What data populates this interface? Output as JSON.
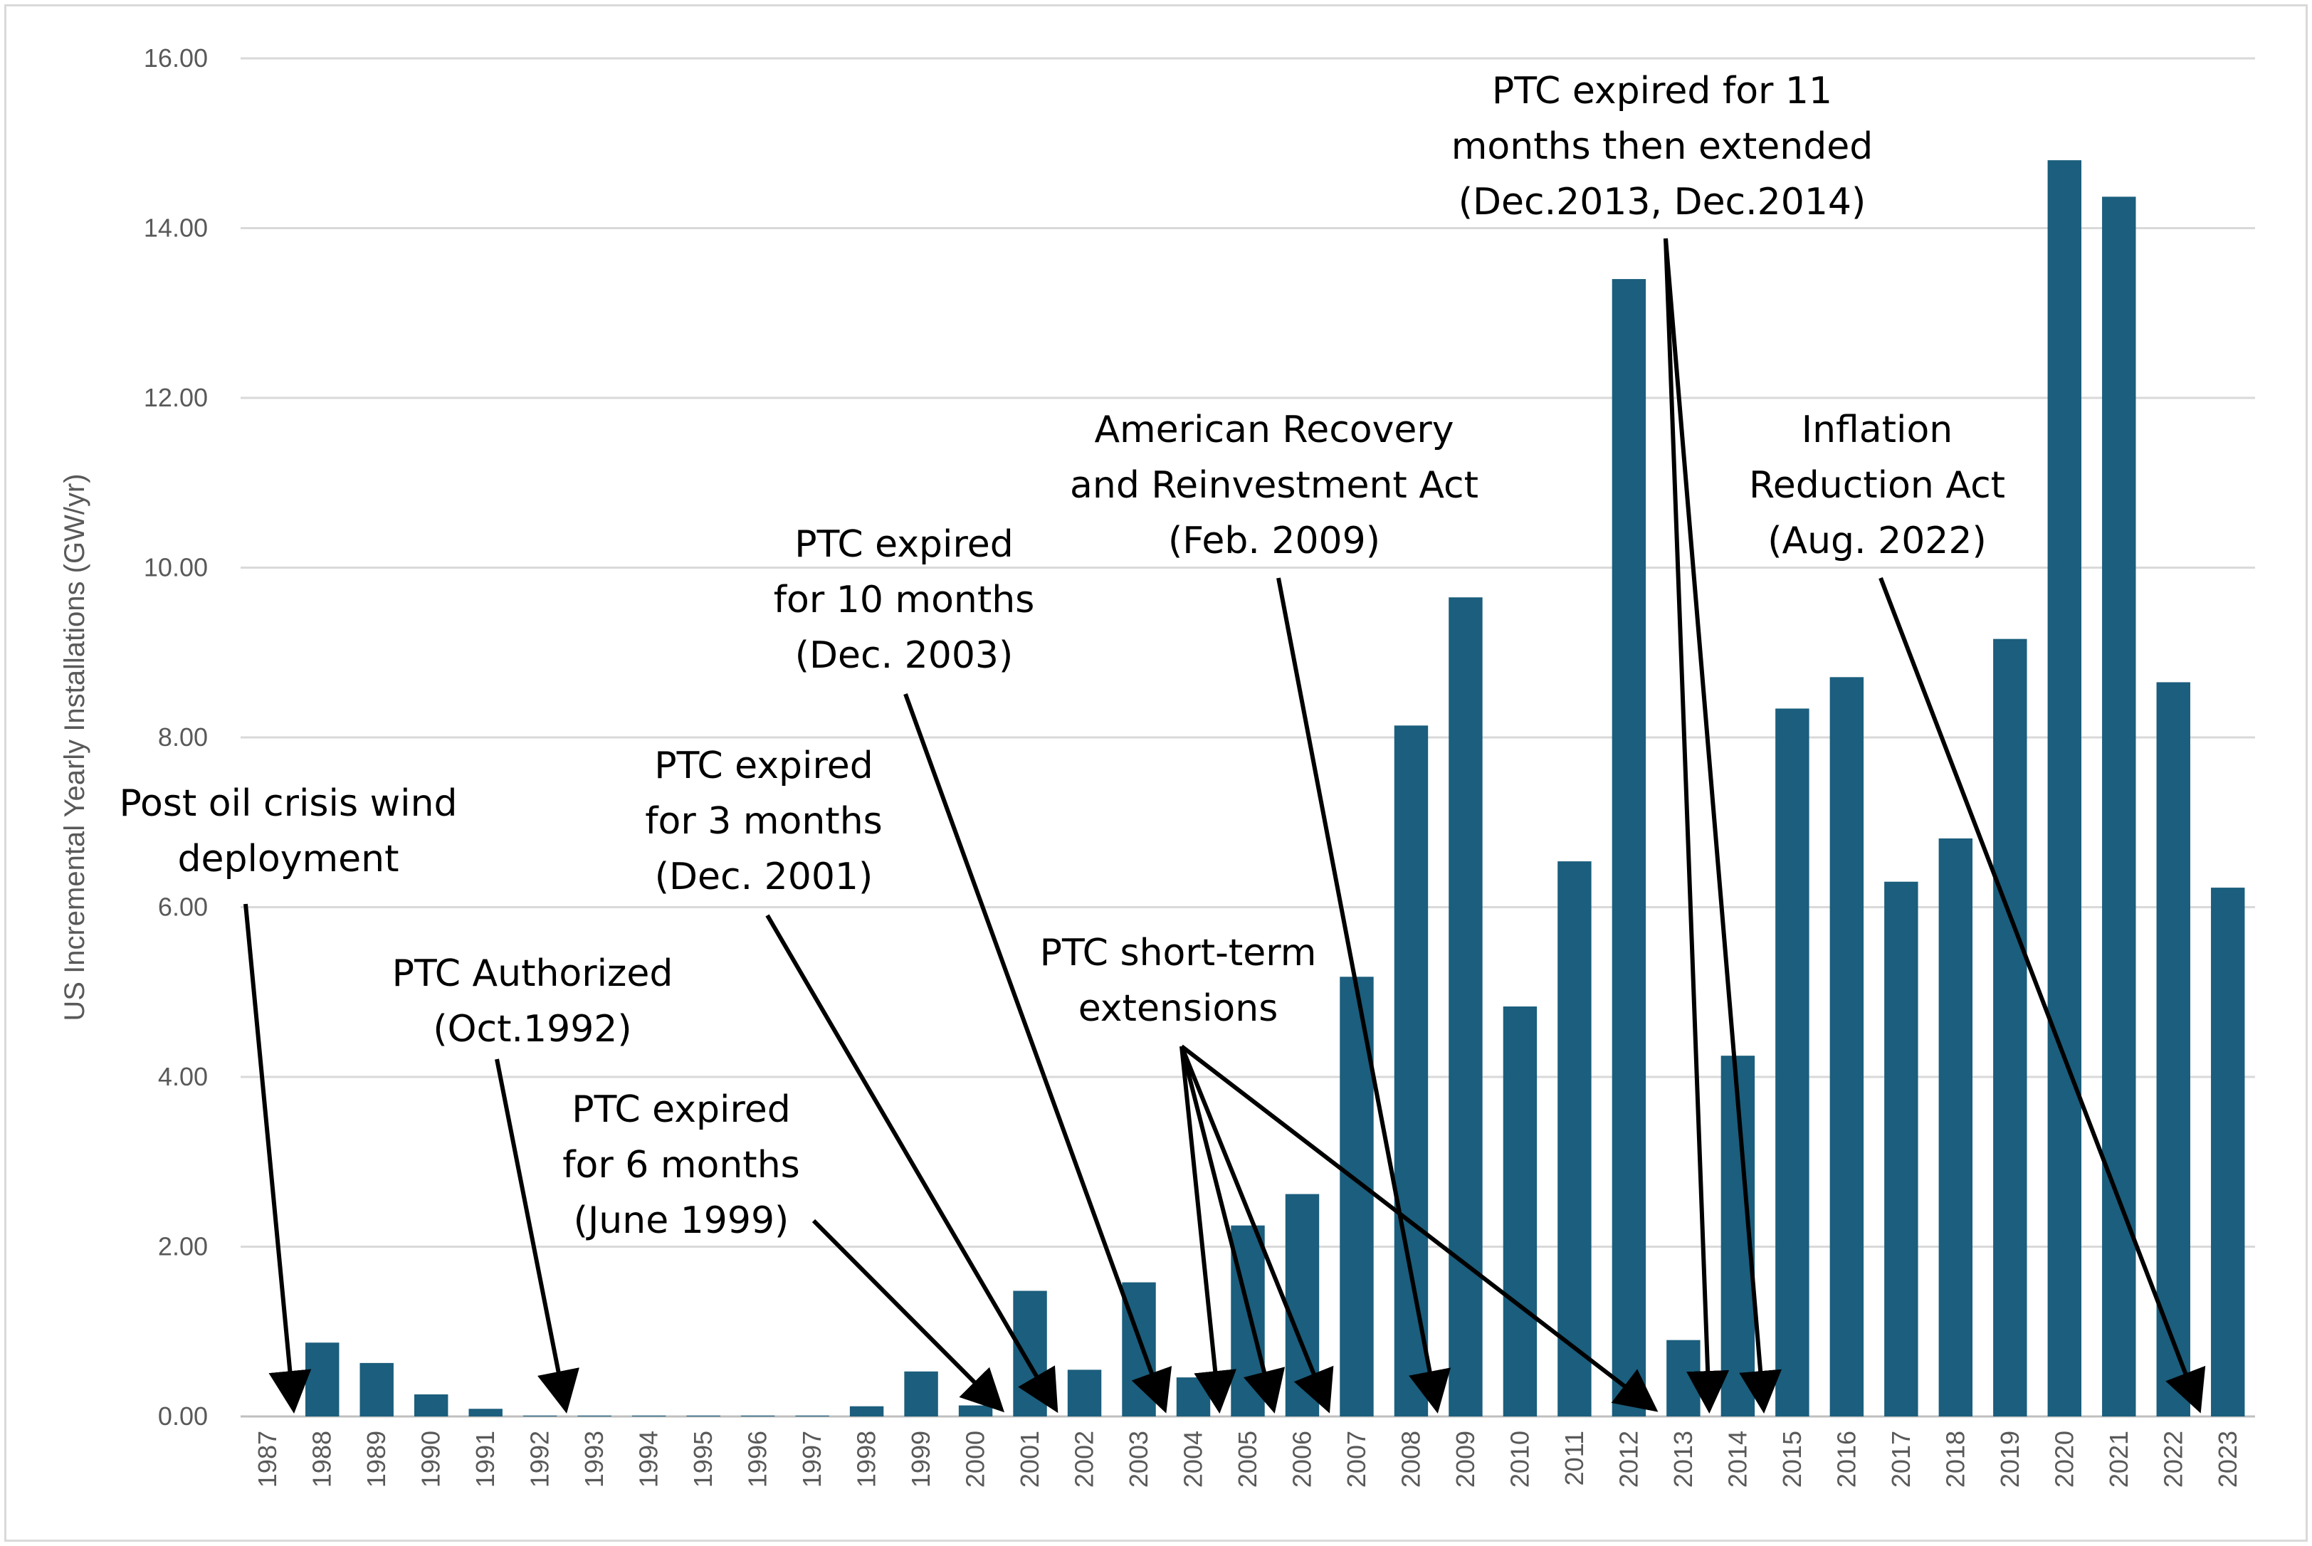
{
  "chart_data": {
    "type": "bar",
    "title": "",
    "xlabel": "",
    "ylabel": "US Incremental Yearly Installations (GW/yr)",
    "ylim": [
      0,
      16
    ],
    "yticks": [
      "0.00",
      "2.00",
      "4.00",
      "6.00",
      "8.00",
      "10.00",
      "12.00",
      "14.00",
      "16.00"
    ],
    "grid": true,
    "bar_color": "#1b5e7d",
    "categories": [
      "1987",
      "1988",
      "1989",
      "1990",
      "1991",
      "1992",
      "1993",
      "1994",
      "1995",
      "1996",
      "1997",
      "1998",
      "1999",
      "2000",
      "2001",
      "2002",
      "2003",
      "2004",
      "2005",
      "2006",
      "2007",
      "2008",
      "2009",
      "2010",
      "2011",
      "2012",
      "2013",
      "2014",
      "2015",
      "2016",
      "2017",
      "2018",
      "2019",
      "2020",
      "2021",
      "2022",
      "2023"
    ],
    "values": [
      0,
      0.87,
      0.63,
      0.26,
      0.09,
      0.01,
      0.01,
      0.01,
      0.01,
      0.01,
      0.01,
      0.12,
      0.53,
      0.13,
      1.48,
      0.55,
      1.58,
      0.46,
      2.25,
      2.62,
      5.18,
      8.14,
      9.65,
      4.83,
      6.54,
      13.4,
      0.9,
      4.25,
      8.34,
      8.71,
      6.3,
      6.81,
      9.16,
      14.8,
      14.37,
      8.65,
      6.23
    ],
    "annotations": [
      {
        "lines": [
          "Post oil crisis wind",
          "deployment"
        ],
        "targets": [
          "1987"
        ]
      },
      {
        "lines": [
          "PTC Authorized",
          "(Oct.1992)"
        ],
        "targets": [
          "1992"
        ]
      },
      {
        "lines": [
          "PTC expired",
          "for 6 months",
          "(June 1999)"
        ],
        "targets": [
          "2000"
        ]
      },
      {
        "lines": [
          "PTC expired",
          "for 3 months",
          "(Dec. 2001)"
        ],
        "targets": [
          "2001"
        ]
      },
      {
        "lines": [
          "PTC expired",
          "for 10 months",
          "(Dec. 2003)"
        ],
        "targets": [
          "2003"
        ]
      },
      {
        "lines": [
          "PTC short-term",
          "extensions"
        ],
        "targets": [
          "2004",
          "2005",
          "2006",
          "2012"
        ]
      },
      {
        "lines": [
          "American Recovery",
          "and Reinvestment Act",
          "(Feb. 2009)"
        ],
        "targets": [
          "2008"
        ]
      },
      {
        "lines": [
          "PTC expired for 11",
          "months then extended",
          "(Dec.2013, Dec.2014)"
        ],
        "targets": [
          "2013",
          "2014"
        ]
      },
      {
        "lines": [
          "Inflation",
          "Reduction Act",
          "(Aug. 2022)"
        ],
        "targets": [
          "2022"
        ]
      }
    ]
  }
}
